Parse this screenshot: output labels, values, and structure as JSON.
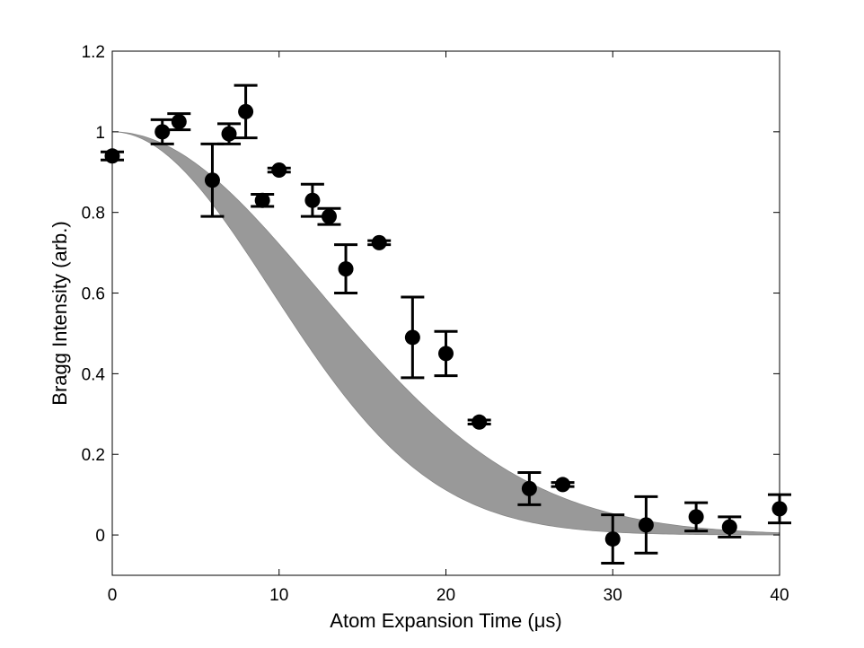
{
  "chart_data": {
    "type": "scatter",
    "title": "",
    "xlabel": "Atom Expansion Time (μs)",
    "ylabel": "Bragg Intensity (arb.)",
    "xlim": [
      0,
      40
    ],
    "ylim": [
      -0.1,
      1.2
    ],
    "xticks": [
      0,
      10,
      20,
      30,
      40
    ],
    "yticks": [
      0,
      0.2,
      0.4,
      0.6,
      0.8,
      1,
      1.2
    ],
    "ytick_labels": [
      "0",
      "0.2",
      "0.4",
      "0.6",
      "0.8",
      "1",
      "1.2"
    ],
    "grid": false,
    "band": {
      "name": "theory band",
      "color": "#999999",
      "upper_tau": 17.5,
      "lower_tau": 13.5
    },
    "series": [
      {
        "name": "data",
        "color": "#000000",
        "points": [
          {
            "x": 0,
            "y": 0.94,
            "err": 0.01
          },
          {
            "x": 3,
            "y": 1.0,
            "err": 0.03
          },
          {
            "x": 4,
            "y": 1.025,
            "err": 0.02
          },
          {
            "x": 6,
            "y": 0.88,
            "err": 0.09
          },
          {
            "x": 7,
            "y": 0.995,
            "err": 0.025
          },
          {
            "x": 8,
            "y": 1.05,
            "err": 0.065
          },
          {
            "x": 9,
            "y": 0.83,
            "err": 0.015
          },
          {
            "x": 10,
            "y": 0.905,
            "err": 0.005
          },
          {
            "x": 12,
            "y": 0.83,
            "err": 0.04
          },
          {
            "x": 13,
            "y": 0.79,
            "err": 0.02
          },
          {
            "x": 14,
            "y": 0.66,
            "err": 0.06
          },
          {
            "x": 16,
            "y": 0.725,
            "err": 0.005
          },
          {
            "x": 18,
            "y": 0.49,
            "err": 0.1
          },
          {
            "x": 20,
            "y": 0.45,
            "err": 0.055
          },
          {
            "x": 22,
            "y": 0.28,
            "err": 0.005
          },
          {
            "x": 25,
            "y": 0.115,
            "err": 0.04
          },
          {
            "x": 27,
            "y": 0.125,
            "err": 0.005
          },
          {
            "x": 30,
            "y": -0.01,
            "err": 0.06
          },
          {
            "x": 32,
            "y": 0.025,
            "err": 0.07
          },
          {
            "x": 35,
            "y": 0.045,
            "err": 0.035
          },
          {
            "x": 37,
            "y": 0.02,
            "err": 0.025
          },
          {
            "x": 40,
            "y": 0.065,
            "err": 0.035
          }
        ]
      }
    ]
  }
}
